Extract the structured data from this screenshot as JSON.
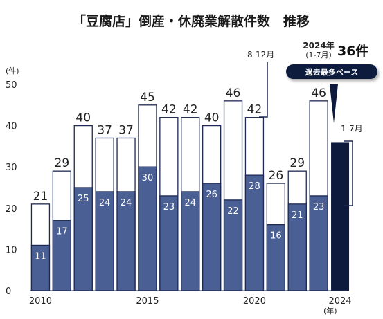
{
  "chart_data": {
    "type": "bar",
    "title": "「豆腐店」倒産・休廃業解散件数　推移",
    "ylabel": "(件)",
    "xlabel": "(年)",
    "ylim": [
      0,
      50
    ],
    "y_ticks": [
      0,
      10,
      20,
      30,
      40,
      50
    ],
    "x_tick_labels": [
      {
        "year": 2010,
        "label": "2010"
      },
      {
        "year": 2015,
        "label": "2015"
      },
      {
        "year": 2020,
        "label": "2020"
      },
      {
        "year": 2024,
        "label": "2024"
      }
    ],
    "categories": [
      2010,
      2011,
      2012,
      2013,
      2014,
      2015,
      2016,
      2017,
      2018,
      2019,
      2020,
      2021,
      2022,
      2023,
      2024
    ],
    "totals": [
      21,
      29,
      40,
      37,
      37,
      45,
      42,
      42,
      40,
      46,
      42,
      26,
      29,
      46,
      36
    ],
    "jan_jul": [
      11,
      17,
      25,
      24,
      24,
      30,
      23,
      24,
      26,
      22,
      28,
      16,
      21,
      23,
      36
    ],
    "annotations": {
      "bracket_upper": "8-12月",
      "bracket_lower": "1-7月",
      "highlight_year": "2024年",
      "highlight_period": "(1-7月)",
      "highlight_total": "36件",
      "badge": "過去最多ペース"
    },
    "colors": {
      "full_year_fill": "#ffffff",
      "jan_jul_fill": "#4a5f94",
      "highlight_fill": "#0d1a3d",
      "outline": "#1e2a52",
      "badge_bg": "#0d1a3d"
    }
  }
}
